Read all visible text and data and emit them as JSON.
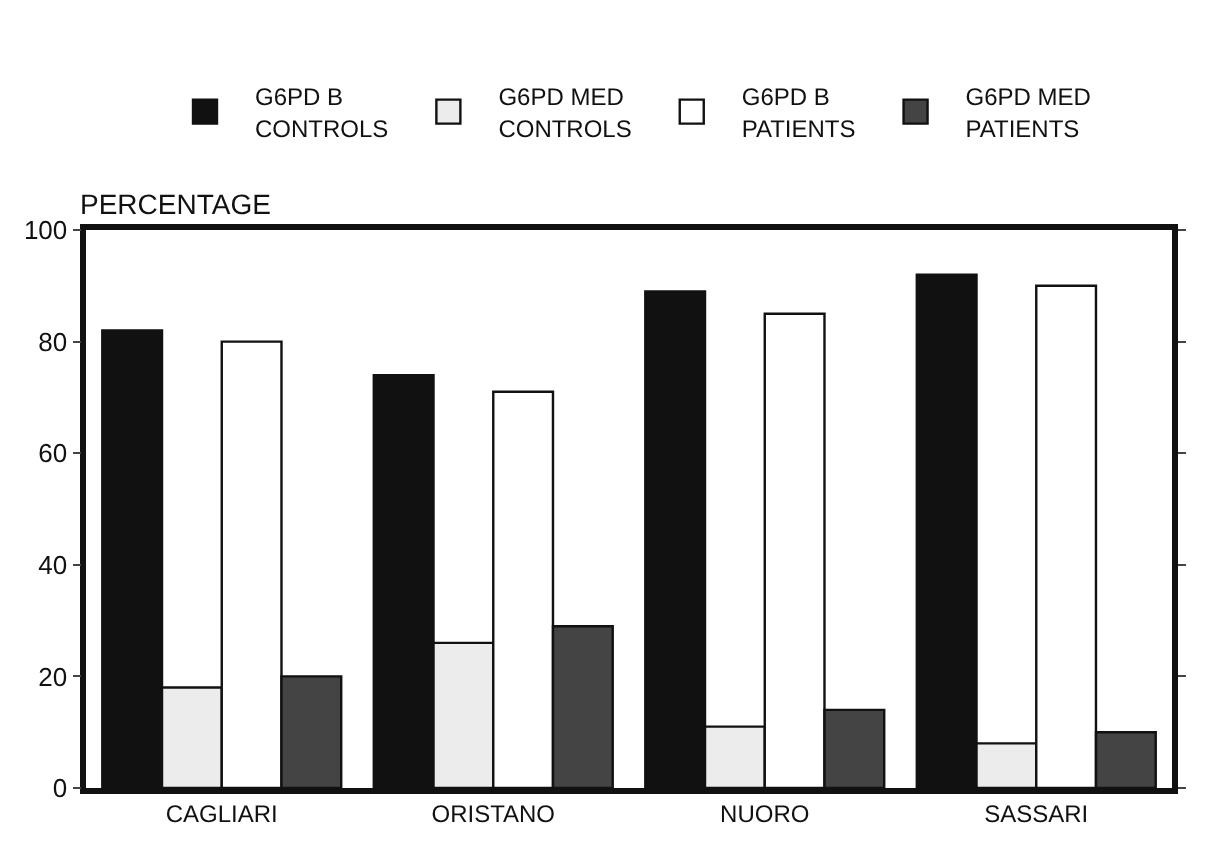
{
  "chart_data": {
    "type": "bar",
    "ylabel": "PERCENTAGE",
    "categories": [
      "CAGLIARI",
      "ORISTANO",
      "NUORO",
      "SASSARI"
    ],
    "series": [
      {
        "name": "G6PD B\nCONTROLS",
        "color": "#111111",
        "values": [
          82,
          74,
          89,
          92
        ]
      },
      {
        "name": "G6PD MED\nCONTROLS",
        "color": "#ececec",
        "values": [
          18,
          26,
          11,
          8
        ]
      },
      {
        "name": "G6PD B\nPATIENTS",
        "color": "#ffffff",
        "values": [
          80,
          71,
          85,
          90
        ]
      },
      {
        "name": "G6PD MED\nPATIENTS",
        "color": "#444444",
        "values": [
          20,
          29,
          14,
          10
        ]
      }
    ],
    "ylim": [
      0,
      100
    ],
    "yticks": [
      0,
      20,
      40,
      60,
      80,
      100
    ],
    "legend": "top"
  }
}
